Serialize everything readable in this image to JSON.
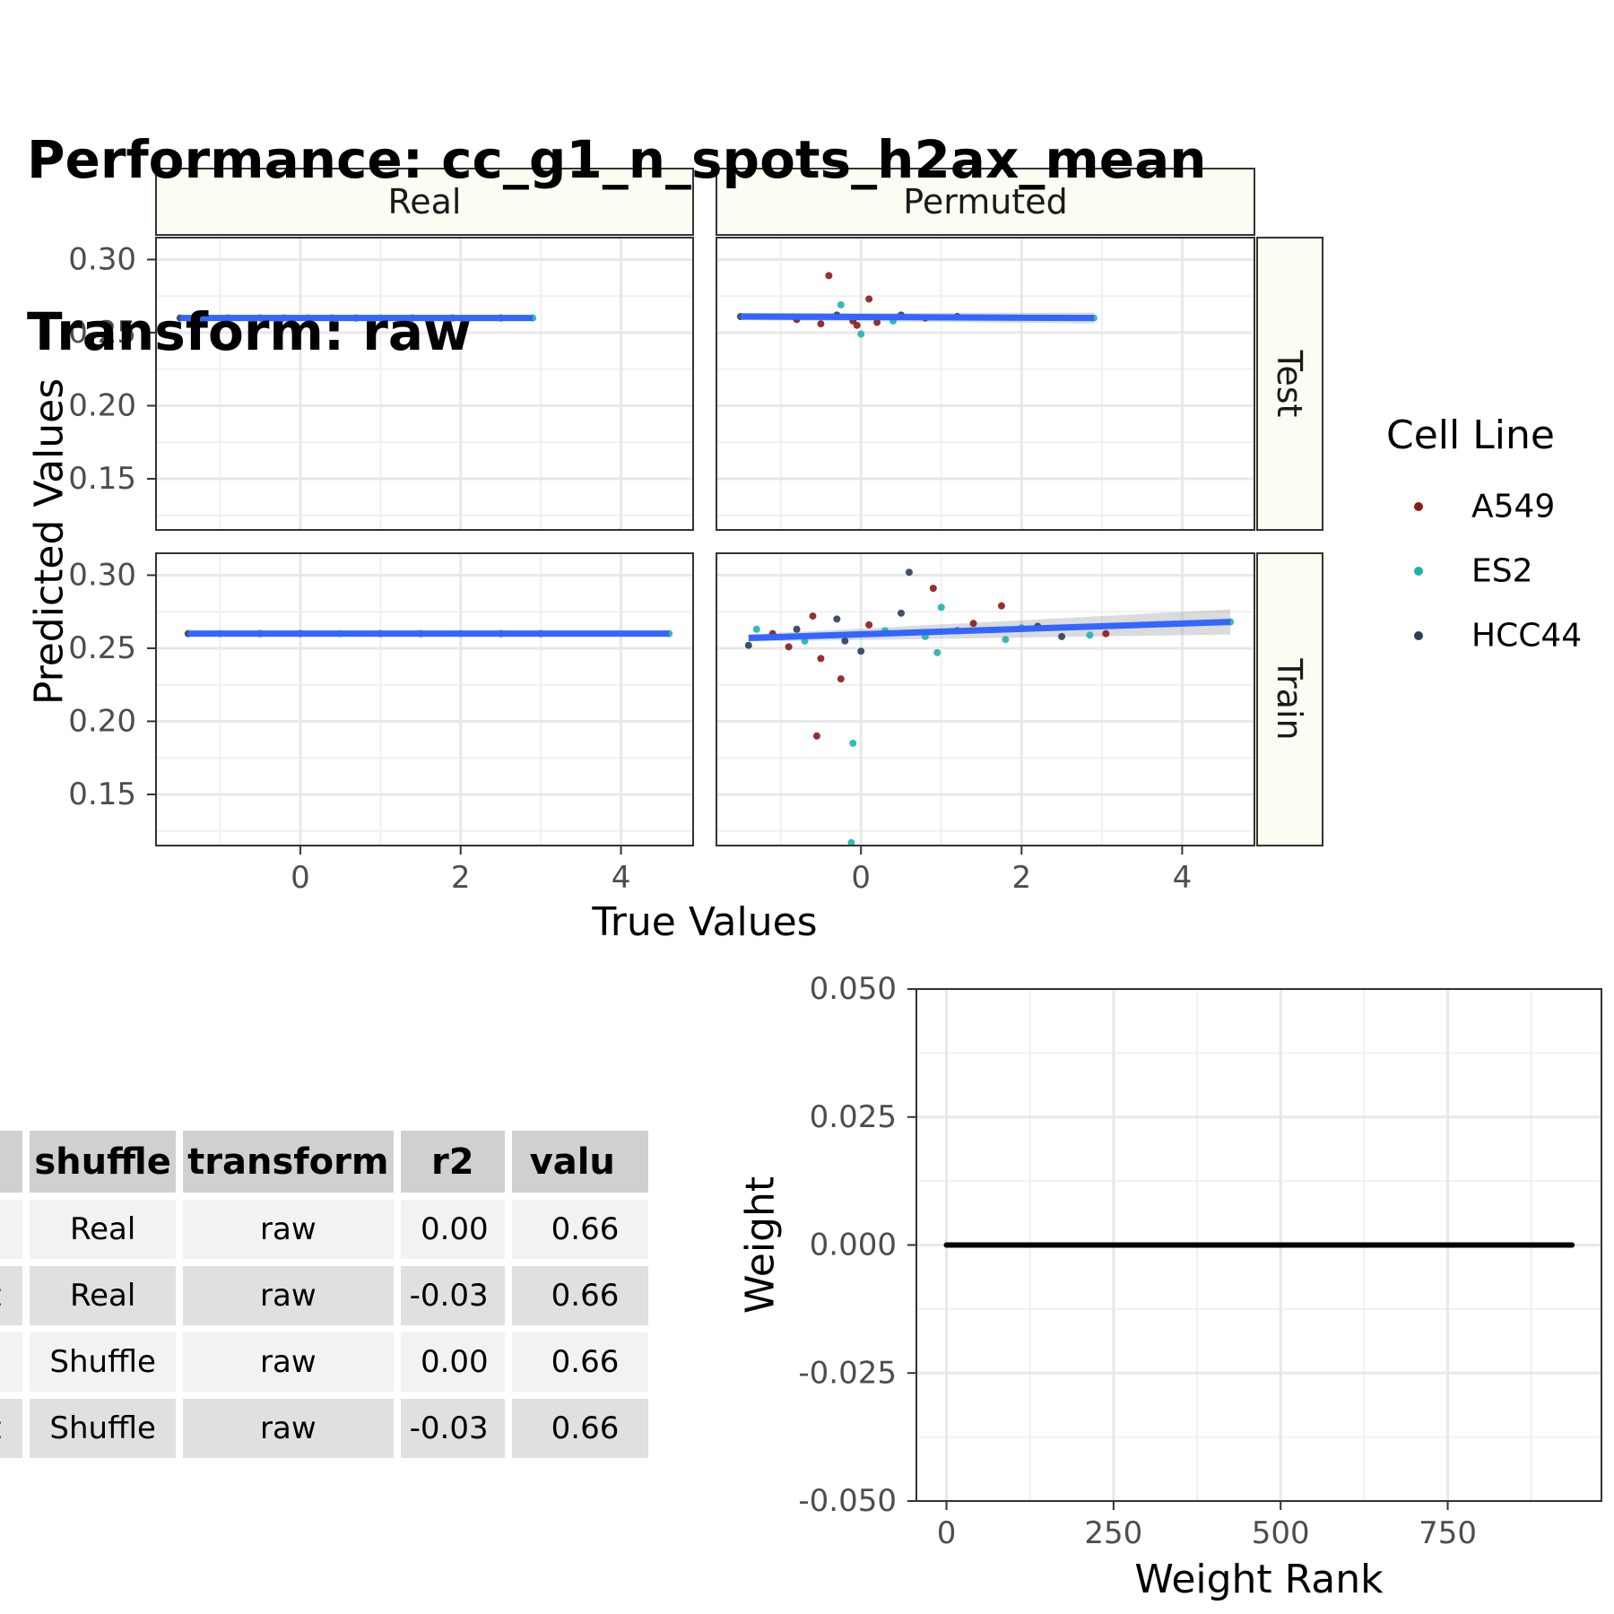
{
  "title": {
    "line1": "Performance: cc_g1_n_spots_h2ax_mean",
    "line2": "Transform: raw"
  },
  "colors": {
    "A549": "#8b1a1a",
    "ES2": "#20b2aa",
    "HCC44": "#2f3e55",
    "fit_line": "#3366ff",
    "strip_bg": "#fcfdf2",
    "weight_line": "#000000"
  },
  "chart_data": [
    {
      "type": "scatter",
      "facet_cols": [
        "Real",
        "Permuted"
      ],
      "facet_rows": [
        "Test",
        "Train"
      ],
      "xlabel": "True Values",
      "ylabel": "Predicted Values",
      "xlim": [
        -1.8,
        4.9
      ],
      "ylim": [
        0.115,
        0.315
      ],
      "xticks": [
        0,
        2,
        4
      ],
      "yticks": [
        0.15,
        0.2,
        0.25,
        0.3
      ],
      "ytick_labels": [
        "0.15",
        "0.20",
        "0.25",
        "0.30"
      ],
      "legend": {
        "title": "Cell Line",
        "entries": [
          "A549",
          "ES2",
          "HCC44"
        ],
        "position": "right"
      },
      "panels": [
        {
          "col": "Real",
          "row": "Test",
          "fit": {
            "x": [
              -1.5,
              2.9
            ],
            "y": [
              0.26,
              0.26
            ]
          },
          "points": [
            {
              "x": -1.5,
              "y": 0.26,
              "g": "HCC44"
            },
            {
              "x": -1.2,
              "y": 0.26,
              "g": "ES2"
            },
            {
              "x": -0.9,
              "y": 0.26,
              "g": "A549"
            },
            {
              "x": -0.5,
              "y": 0.26,
              "g": "HCC44"
            },
            {
              "x": -0.2,
              "y": 0.26,
              "g": "A549"
            },
            {
              "x": 0.1,
              "y": 0.26,
              "g": "ES2"
            },
            {
              "x": 0.4,
              "y": 0.26,
              "g": "HCC44"
            },
            {
              "x": 0.7,
              "y": 0.26,
              "g": "A549"
            },
            {
              "x": 1.0,
              "y": 0.26,
              "g": "ES2"
            },
            {
              "x": 1.4,
              "y": 0.26,
              "g": "HCC44"
            },
            {
              "x": 1.9,
              "y": 0.26,
              "g": "A549"
            },
            {
              "x": 2.5,
              "y": 0.26,
              "g": "HCC44"
            },
            {
              "x": 2.9,
              "y": 0.26,
              "g": "ES2"
            }
          ]
        },
        {
          "col": "Permuted",
          "row": "Test",
          "fit": {
            "x": [
              -1.5,
              2.9
            ],
            "y": [
              0.261,
              0.26
            ]
          },
          "points": [
            {
              "x": -1.5,
              "y": 0.261,
              "g": "HCC44"
            },
            {
              "x": -0.4,
              "y": 0.289,
              "g": "A549"
            },
            {
              "x": 0.1,
              "y": 0.273,
              "g": "A549"
            },
            {
              "x": -0.25,
              "y": 0.269,
              "g": "ES2"
            },
            {
              "x": 0.0,
              "y": 0.249,
              "g": "ES2"
            },
            {
              "x": -0.5,
              "y": 0.256,
              "g": "A549"
            },
            {
              "x": -0.1,
              "y": 0.258,
              "g": "A549"
            },
            {
              "x": 0.2,
              "y": 0.257,
              "g": "A549"
            },
            {
              "x": -0.3,
              "y": 0.262,
              "g": "HCC44"
            },
            {
              "x": 0.5,
              "y": 0.262,
              "g": "HCC44"
            },
            {
              "x": 0.8,
              "y": 0.26,
              "g": "A549"
            },
            {
              "x": 0.4,
              "y": 0.258,
              "g": "ES2"
            },
            {
              "x": -0.8,
              "y": 0.259,
              "g": "A549"
            },
            {
              "x": 1.2,
              "y": 0.261,
              "g": "HCC44"
            },
            {
              "x": -0.05,
              "y": 0.255,
              "g": "A549"
            },
            {
              "x": 2.9,
              "y": 0.26,
              "g": "ES2"
            }
          ]
        },
        {
          "col": "Real",
          "row": "Train",
          "fit": {
            "x": [
              -1.4,
              4.6
            ],
            "y": [
              0.26,
              0.26
            ]
          },
          "points": [
            {
              "x": -1.4,
              "y": 0.26,
              "g": "HCC44"
            },
            {
              "x": -1.0,
              "y": 0.26,
              "g": "ES2"
            },
            {
              "x": -0.5,
              "y": 0.26,
              "g": "A549"
            },
            {
              "x": 0.0,
              "y": 0.26,
              "g": "HCC44"
            },
            {
              "x": 0.5,
              "y": 0.26,
              "g": "ES2"
            },
            {
              "x": 1.0,
              "y": 0.26,
              "g": "A549"
            },
            {
              "x": 1.5,
              "y": 0.26,
              "g": "HCC44"
            },
            {
              "x": 2.0,
              "y": 0.26,
              "g": "ES2"
            },
            {
              "x": 2.5,
              "y": 0.26,
              "g": "A549"
            },
            {
              "x": 3.0,
              "y": 0.26,
              "g": "HCC44"
            },
            {
              "x": 4.6,
              "y": 0.26,
              "g": "ES2"
            }
          ]
        },
        {
          "col": "Permuted",
          "row": "Train",
          "fit": {
            "x": [
              -1.4,
              4.6
            ],
            "y": [
              0.257,
              0.268
            ]
          },
          "points": [
            {
              "x": -1.4,
              "y": 0.252,
              "g": "HCC44"
            },
            {
              "x": -1.3,
              "y": 0.263,
              "g": "ES2"
            },
            {
              "x": -1.1,
              "y": 0.26,
              "g": "A549"
            },
            {
              "x": -0.9,
              "y": 0.251,
              "g": "A549"
            },
            {
              "x": -0.8,
              "y": 0.263,
              "g": "HCC44"
            },
            {
              "x": -0.7,
              "y": 0.255,
              "g": "ES2"
            },
            {
              "x": -0.6,
              "y": 0.272,
              "g": "A549"
            },
            {
              "x": -0.5,
              "y": 0.243,
              "g": "A549"
            },
            {
              "x": -0.55,
              "y": 0.19,
              "g": "A549"
            },
            {
              "x": -0.25,
              "y": 0.229,
              "g": "A549"
            },
            {
              "x": -0.1,
              "y": 0.185,
              "g": "ES2"
            },
            {
              "x": -0.12,
              "y": 0.117,
              "g": "ES2"
            },
            {
              "x": -0.3,
              "y": 0.27,
              "g": "HCC44"
            },
            {
              "x": -0.2,
              "y": 0.255,
              "g": "HCC44"
            },
            {
              "x": 0.0,
              "y": 0.248,
              "g": "HCC44"
            },
            {
              "x": 0.1,
              "y": 0.266,
              "g": "A549"
            },
            {
              "x": 0.3,
              "y": 0.262,
              "g": "ES2"
            },
            {
              "x": 0.5,
              "y": 0.274,
              "g": "HCC44"
            },
            {
              "x": 0.6,
              "y": 0.302,
              "g": "HCC44"
            },
            {
              "x": 0.9,
              "y": 0.291,
              "g": "A549"
            },
            {
              "x": 0.8,
              "y": 0.258,
              "g": "ES2"
            },
            {
              "x": 0.95,
              "y": 0.247,
              "g": "ES2"
            },
            {
              "x": 1.0,
              "y": 0.278,
              "g": "ES2"
            },
            {
              "x": 1.2,
              "y": 0.262,
              "g": "HCC44"
            },
            {
              "x": 1.4,
              "y": 0.267,
              "g": "A549"
            },
            {
              "x": 1.75,
              "y": 0.279,
              "g": "A549"
            },
            {
              "x": 1.8,
              "y": 0.256,
              "g": "ES2"
            },
            {
              "x": 2.0,
              "y": 0.264,
              "g": "ES2"
            },
            {
              "x": 2.2,
              "y": 0.265,
              "g": "HCC44"
            },
            {
              "x": 2.5,
              "y": 0.258,
              "g": "HCC44"
            },
            {
              "x": 2.85,
              "y": 0.259,
              "g": "ES2"
            },
            {
              "x": 3.05,
              "y": 0.26,
              "g": "A549"
            },
            {
              "x": 4.6,
              "y": 0.268,
              "g": "ES2"
            }
          ]
        }
      ]
    },
    {
      "type": "line",
      "xlabel": "Weight Rank",
      "ylabel": "Weight",
      "xlim": [
        -45,
        980
      ],
      "ylim": [
        -0.05,
        0.05
      ],
      "xticks": [
        0,
        250,
        500,
        750
      ],
      "yticks": [
        -0.05,
        -0.025,
        0,
        0.025,
        0.05
      ],
      "ytick_labels": [
        "-0.050",
        "-0.025",
        "0.000",
        "0.025",
        "0.050"
      ],
      "x": [
        0,
        936
      ],
      "y": [
        0,
        0
      ]
    },
    {
      "type": "table",
      "columns": [
        "fit",
        "shuffle",
        "transform",
        "r2",
        "valu"
      ],
      "rows": [
        [
          "ain",
          "Real",
          "raw",
          "0.00",
          "0.66"
        ],
        [
          "est",
          "Real",
          "raw",
          "-0.03",
          "0.66"
        ],
        [
          "ain",
          "Shuffle",
          "raw",
          "0.00",
          "0.66"
        ],
        [
          "est",
          "Shuffle",
          "raw",
          "-0.03",
          "0.66"
        ]
      ]
    }
  ]
}
